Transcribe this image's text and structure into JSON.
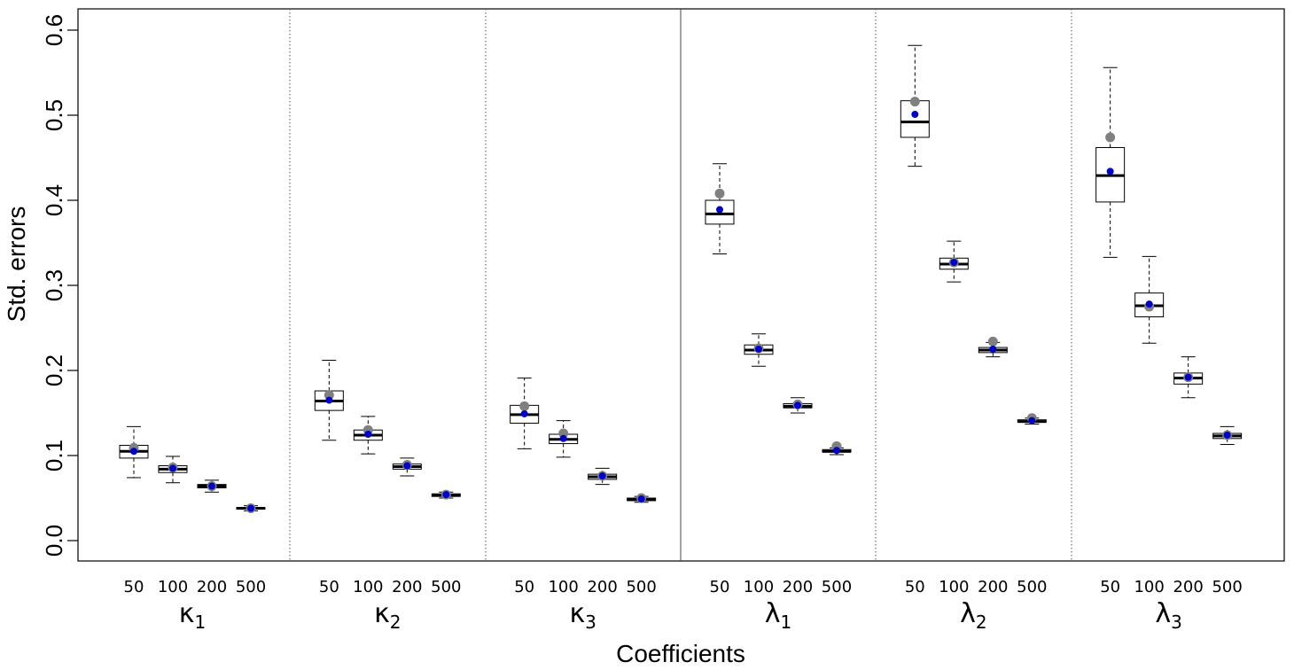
{
  "chart_data": {
    "type": "boxplot",
    "xlabel": "Coefficients",
    "ylabel": "Std. errors",
    "ylim": [
      -0.025,
      0.62
    ],
    "yticks": [
      "0.0",
      "0.1",
      "0.2",
      "0.3",
      "0.4",
      "0.5",
      "0.6"
    ],
    "sample_sizes": [
      "50",
      "100",
      "200",
      "500"
    ],
    "colors": {
      "mean_point": "#0000cc",
      "reference_point": "#808080",
      "box": "#000000"
    },
    "groups": [
      {
        "label": "κ",
        "subscript": "1",
        "boxes": [
          {
            "n": "50",
            "whisker_low": 0.074,
            "q1": 0.097,
            "median": 0.105,
            "q3": 0.112,
            "whisker_high": 0.134,
            "mean": 0.105,
            "reference": 0.109
          },
          {
            "n": "100",
            "whisker_low": 0.068,
            "q1": 0.08,
            "median": 0.084,
            "q3": 0.088,
            "whisker_high": 0.099,
            "mean": 0.085,
            "reference": 0.086
          },
          {
            "n": "200",
            "whisker_low": 0.057,
            "q1": 0.062,
            "median": 0.064,
            "q3": 0.066,
            "whisker_high": 0.071,
            "mean": 0.064,
            "reference": 0.064
          },
          {
            "n": "500",
            "whisker_low": 0.035,
            "q1": 0.037,
            "median": 0.038,
            "q3": 0.039,
            "whisker_high": 0.041,
            "mean": 0.038,
            "reference": 0.038
          }
        ]
      },
      {
        "label": "κ",
        "subscript": "2",
        "boxes": [
          {
            "n": "50",
            "whisker_low": 0.118,
            "q1": 0.153,
            "median": 0.164,
            "q3": 0.176,
            "whisker_high": 0.212,
            "mean": 0.165,
            "reference": 0.171
          },
          {
            "n": "100",
            "whisker_low": 0.102,
            "q1": 0.118,
            "median": 0.124,
            "q3": 0.13,
            "whisker_high": 0.146,
            "mean": 0.125,
            "reference": 0.13
          },
          {
            "n": "200",
            "whisker_low": 0.076,
            "q1": 0.084,
            "median": 0.087,
            "q3": 0.09,
            "whisker_high": 0.097,
            "mean": 0.088,
            "reference": 0.089
          },
          {
            "n": "500",
            "whisker_low": 0.05,
            "q1": 0.052,
            "median": 0.053,
            "q3": 0.055,
            "whisker_high": 0.057,
            "mean": 0.054,
            "reference": 0.054
          }
        ]
      },
      {
        "label": "κ",
        "subscript": "3",
        "boxes": [
          {
            "n": "50",
            "whisker_low": 0.108,
            "q1": 0.138,
            "median": 0.148,
            "q3": 0.159,
            "whisker_high": 0.191,
            "mean": 0.149,
            "reference": 0.158
          },
          {
            "n": "100",
            "whisker_low": 0.098,
            "q1": 0.114,
            "median": 0.119,
            "q3": 0.125,
            "whisker_high": 0.141,
            "mean": 0.12,
            "reference": 0.126
          },
          {
            "n": "200",
            "whisker_low": 0.066,
            "q1": 0.072,
            "median": 0.075,
            "q3": 0.078,
            "whisker_high": 0.085,
            "mean": 0.076,
            "reference": 0.076
          },
          {
            "n": "500",
            "whisker_low": 0.045,
            "q1": 0.047,
            "median": 0.048,
            "q3": 0.05,
            "whisker_high": 0.052,
            "mean": 0.049,
            "reference": 0.05
          }
        ]
      },
      {
        "label": "λ",
        "subscript": "1",
        "boxes": [
          {
            "n": "50",
            "whisker_low": 0.337,
            "q1": 0.372,
            "median": 0.384,
            "q3": 0.4,
            "whisker_high": 0.443,
            "mean": 0.389,
            "reference": 0.408
          },
          {
            "n": "100",
            "whisker_low": 0.205,
            "q1": 0.219,
            "median": 0.224,
            "q3": 0.23,
            "whisker_high": 0.243,
            "mean": 0.225,
            "reference": 0.226
          },
          {
            "n": "200",
            "whisker_low": 0.15,
            "q1": 0.156,
            "median": 0.158,
            "q3": 0.161,
            "whisker_high": 0.168,
            "mean": 0.159,
            "reference": 0.16
          },
          {
            "n": "500",
            "whisker_low": 0.101,
            "q1": 0.104,
            "median": 0.105,
            "q3": 0.107,
            "whisker_high": 0.109,
            "mean": 0.106,
            "reference": 0.111
          }
        ]
      },
      {
        "label": "λ",
        "subscript": "2",
        "boxes": [
          {
            "n": "50",
            "whisker_low": 0.44,
            "q1": 0.474,
            "median": 0.492,
            "q3": 0.517,
            "whisker_high": 0.582,
            "mean": 0.501,
            "reference": 0.516
          },
          {
            "n": "100",
            "whisker_low": 0.304,
            "q1": 0.319,
            "median": 0.325,
            "q3": 0.332,
            "whisker_high": 0.352,
            "mean": 0.327,
            "reference": 0.327
          },
          {
            "n": "200",
            "whisker_low": 0.216,
            "q1": 0.221,
            "median": 0.224,
            "q3": 0.227,
            "whisker_high": 0.233,
            "mean": 0.225,
            "reference": 0.234
          },
          {
            "n": "500",
            "whisker_low": 0.137,
            "q1": 0.139,
            "median": 0.14,
            "q3": 0.142,
            "whisker_high": 0.144,
            "mean": 0.141,
            "reference": 0.144
          }
        ]
      },
      {
        "label": "λ",
        "subscript": "3",
        "boxes": [
          {
            "n": "50",
            "whisker_low": 0.333,
            "q1": 0.398,
            "median": 0.429,
            "q3": 0.462,
            "whisker_high": 0.556,
            "mean": 0.434,
            "reference": 0.474
          },
          {
            "n": "100",
            "whisker_low": 0.232,
            "q1": 0.263,
            "median": 0.276,
            "q3": 0.291,
            "whisker_high": 0.334,
            "mean": 0.278,
            "reference": 0.275
          },
          {
            "n": "200",
            "whisker_low": 0.168,
            "q1": 0.184,
            "median": 0.191,
            "q3": 0.197,
            "whisker_high": 0.216,
            "mean": 0.192,
            "reference": 0.192
          },
          {
            "n": "500",
            "whisker_low": 0.113,
            "q1": 0.12,
            "median": 0.123,
            "q3": 0.126,
            "whisker_high": 0.134,
            "mean": 0.124,
            "reference": 0.124
          }
        ]
      }
    ]
  }
}
